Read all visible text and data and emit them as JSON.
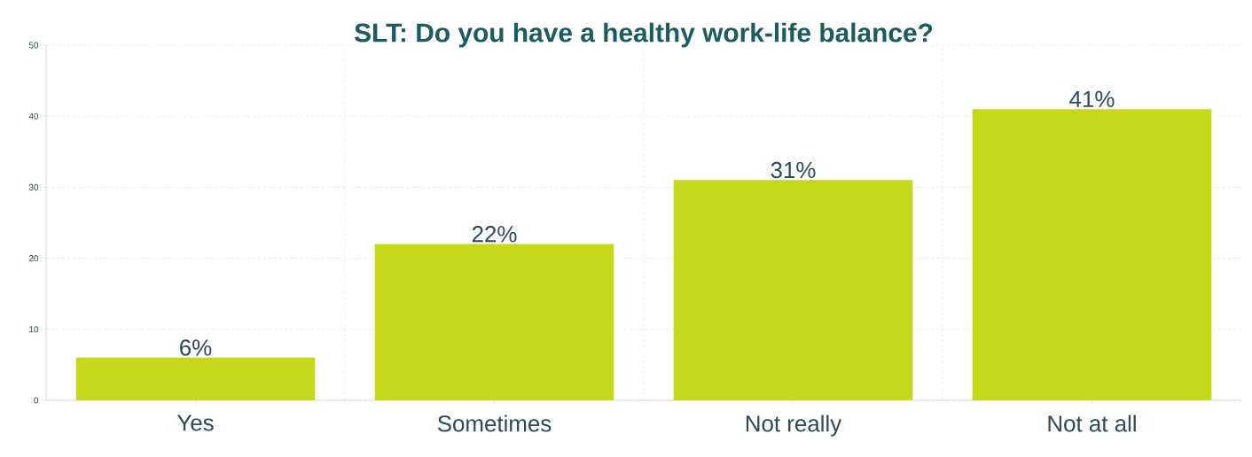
{
  "chart_data": {
    "type": "bar",
    "title": "SLT: Do you have a healthy work-life balance?",
    "categories": [
      "Yes",
      "Sometimes",
      "Not really",
      "Not at all"
    ],
    "values": [
      6,
      22,
      31,
      41
    ],
    "value_labels": [
      "6%",
      "22%",
      "31%",
      "41%"
    ],
    "color": "#c5d819",
    "ylim": [
      0,
      50
    ],
    "yticks": [
      0,
      10,
      20,
      30,
      40,
      50
    ],
    "grid": true
  }
}
